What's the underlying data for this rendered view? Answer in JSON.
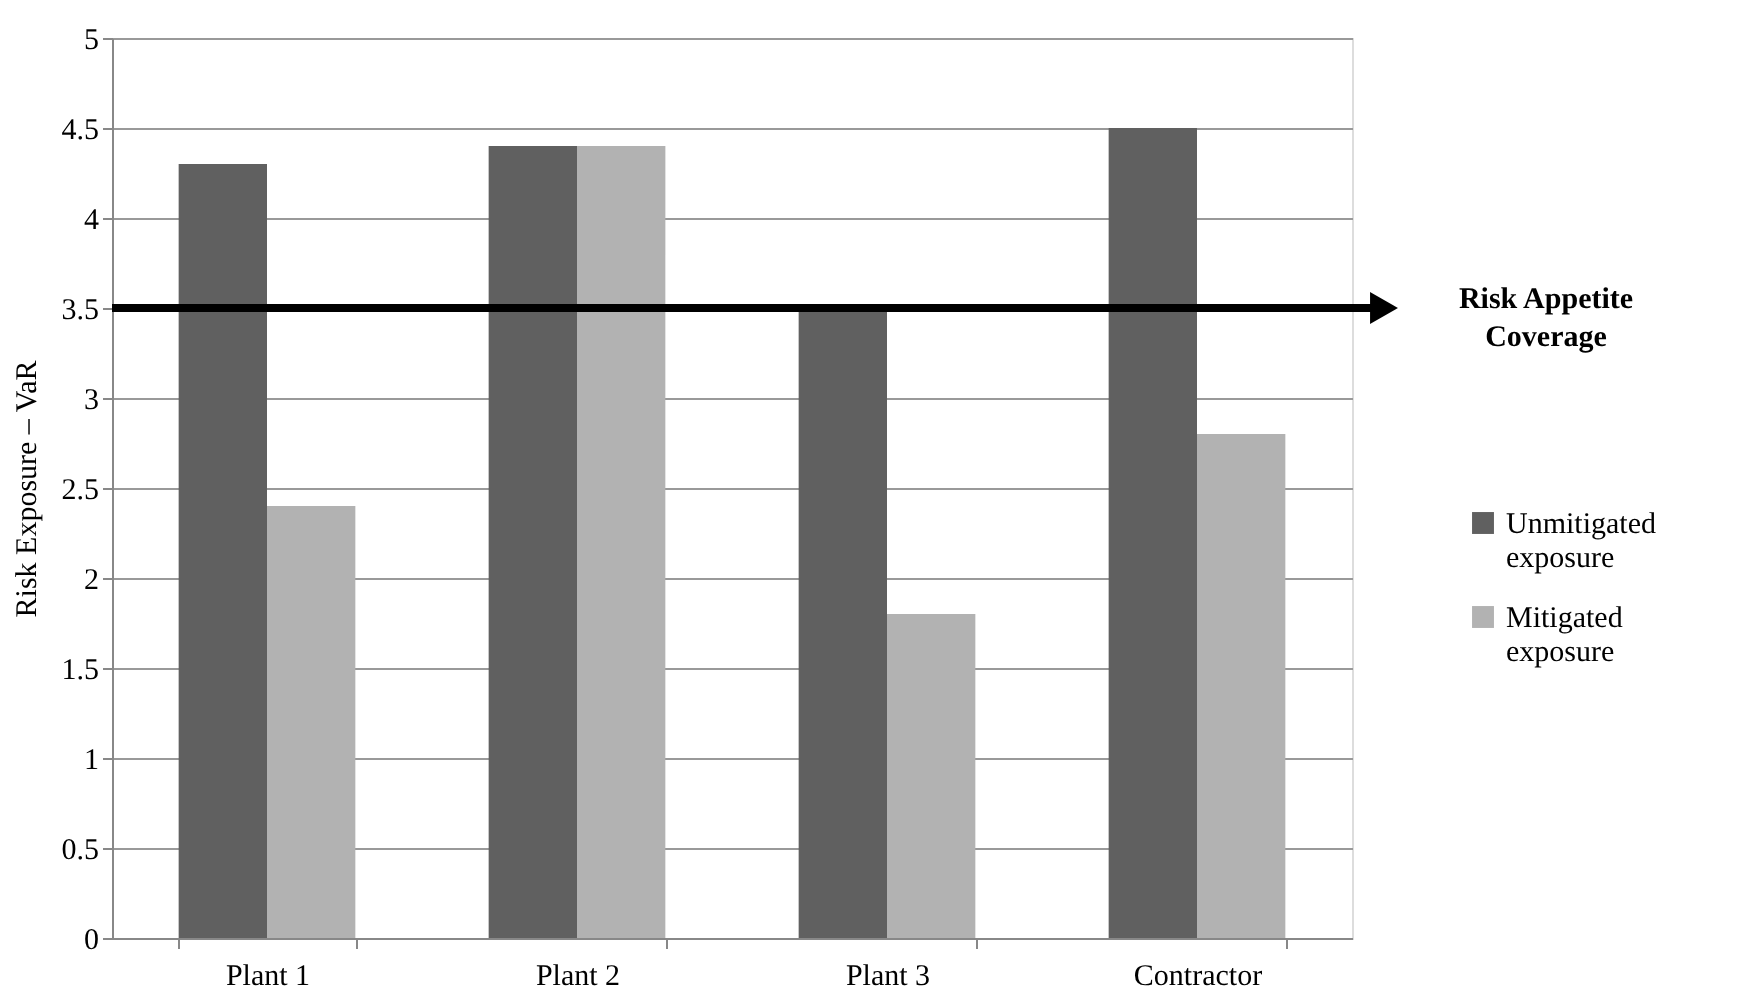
{
  "chart_data": {
    "type": "bar",
    "ylabel": "Risk Exposure – VaR",
    "categories": [
      "Plant 1",
      "Plant 2",
      "Plant 3",
      "Contractor"
    ],
    "series": [
      {
        "name": "Unmitigated exposure",
        "color": "#606060",
        "values": [
          4.3,
          4.4,
          3.5,
          4.5
        ]
      },
      {
        "name": "Mitigated exposure",
        "color": "#b2b2b2",
        "values": [
          2.4,
          4.4,
          1.8,
          2.8
        ]
      }
    ],
    "ylim": [
      0,
      5
    ],
    "yticks": [
      0,
      0.5,
      1,
      1.5,
      2,
      2.5,
      3,
      3.5,
      4,
      4.5,
      5
    ],
    "ref_lines": [
      {
        "axis": "y",
        "value": 3.5,
        "label": "Risk Appetite Coverage",
        "color": "#000000"
      }
    ],
    "grid": "y",
    "legend": "right"
  }
}
